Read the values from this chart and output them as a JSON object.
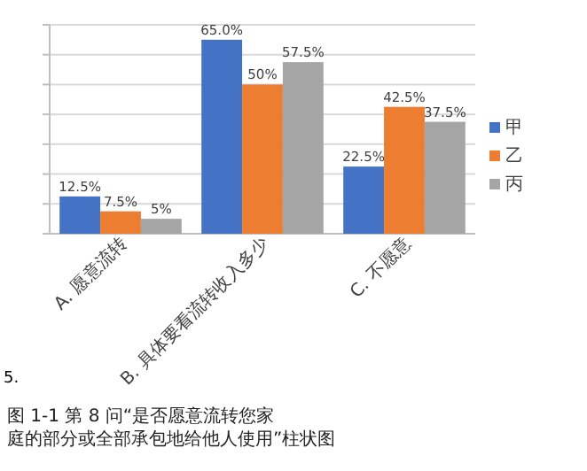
{
  "chart_data": {
    "type": "bar",
    "categories": [
      "A. 愿意流转",
      "B. 具体要看流转收入多少",
      "C. 不愿意"
    ],
    "series": [
      {
        "name": "甲",
        "color": "#4472c4",
        "values": [
          12.5,
          65.0,
          22.5
        ],
        "value_labels": [
          "12.5%",
          "65.0%",
          "22.5%"
        ]
      },
      {
        "name": "乙",
        "color": "#ed7d31",
        "values": [
          7.5,
          50,
          42.5
        ],
        "value_labels": [
          "7.5%",
          "50%",
          "42.5%"
        ]
      },
      {
        "name": "丙",
        "color": "#a5a5a5",
        "values": [
          5,
          57.5,
          37.5
        ],
        "value_labels": [
          "5%",
          "57.5%",
          "37.5%"
        ]
      }
    ],
    "ylim": [
      0,
      70
    ],
    "yticks": [
      {
        "value": 0,
        "label": null
      },
      {
        "value": 10,
        "label": null
      },
      {
        "value": 20,
        "label": null
      },
      {
        "value": 30,
        "label": null
      },
      {
        "value": 40,
        "label": null
      },
      {
        "value": 50,
        "label": null
      },
      {
        "value": 60,
        "label": null
      },
      {
        "value": 70,
        "label": null
      }
    ],
    "grid": "y",
    "legend": "right",
    "annotations": [
      "5.",
      "图 1-1 第 8 问“是否愿意流转您家庭的部分或全部承包地给他人使用”柱状图"
    ]
  }
}
